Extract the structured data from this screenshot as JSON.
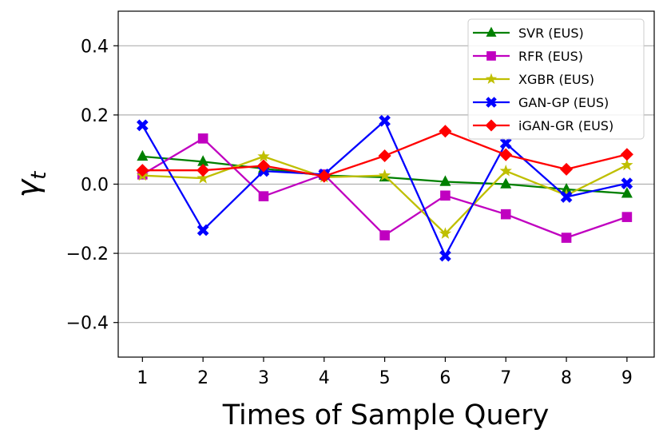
{
  "chart_data": {
    "type": "line",
    "title": "",
    "xlabel": "Times of Sample Query",
    "ylabel_symbol": "γ",
    "ylabel_subscript": "t",
    "x": [
      1,
      2,
      3,
      4,
      5,
      6,
      7,
      8,
      9
    ],
    "x_tick_labels": [
      "1",
      "2",
      "3",
      "4",
      "5",
      "6",
      "7",
      "8",
      "9"
    ],
    "xlim": [
      0.6,
      9.45
    ],
    "ylim": [
      -0.5,
      0.5
    ],
    "y_ticks": [
      0.4,
      0.2,
      0.0,
      -0.2,
      -0.4
    ],
    "y_tick_labels": [
      "0.4",
      "0.2",
      "0.0",
      "−0.2",
      "−0.4"
    ],
    "grid": "horizontal",
    "legend_position": "top-right",
    "series": [
      {
        "name": "SVR (EUS)",
        "color": "#008000",
        "marker": "triangle",
        "values": [
          0.08,
          0.065,
          0.045,
          0.025,
          0.02,
          0.007,
          0.0,
          -0.015,
          -0.027
        ]
      },
      {
        "name": "RFR (EUS)",
        "color": "#c000c0",
        "marker": "square",
        "values": [
          0.028,
          0.132,
          -0.035,
          0.028,
          -0.148,
          -0.033,
          -0.087,
          -0.155,
          -0.095
        ]
      },
      {
        "name": "XGBR (EUS)",
        "color": "#bfbf00",
        "marker": "star",
        "values": [
          0.025,
          0.017,
          0.08,
          0.02,
          0.025,
          -0.143,
          0.038,
          -0.032,
          0.055
        ]
      },
      {
        "name": "GAN-GP (EUS)",
        "color": "#0000ff",
        "marker": "x",
        "values": [
          0.17,
          -0.133,
          0.038,
          0.028,
          0.183,
          -0.207,
          0.118,
          -0.037,
          0.002
        ]
      },
      {
        "name": "iGAN-GR (EUS)",
        "color": "#ff0000",
        "marker": "diamond",
        "values": [
          0.04,
          0.04,
          0.053,
          0.023,
          0.082,
          0.153,
          0.085,
          0.043,
          0.086
        ]
      }
    ]
  }
}
